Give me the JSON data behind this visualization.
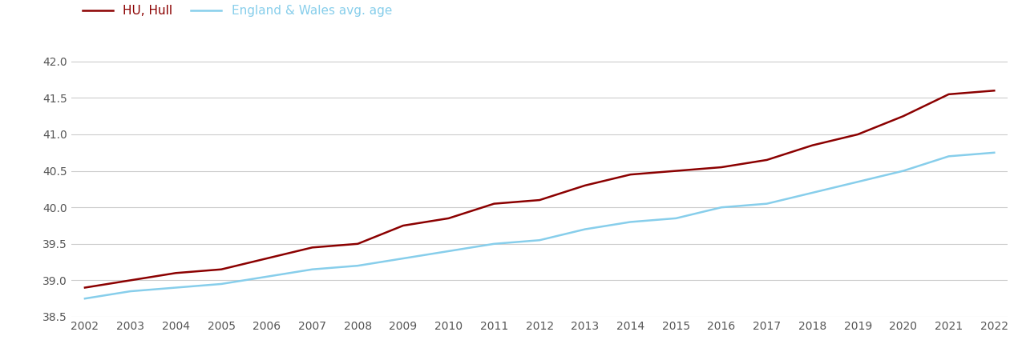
{
  "years": [
    2002,
    2003,
    2004,
    2005,
    2006,
    2007,
    2008,
    2009,
    2010,
    2011,
    2012,
    2013,
    2014,
    2015,
    2016,
    2017,
    2018,
    2019,
    2020,
    2021,
    2022
  ],
  "hull": [
    38.9,
    39.0,
    39.1,
    39.15,
    39.3,
    39.45,
    39.5,
    39.75,
    39.85,
    40.05,
    40.1,
    40.3,
    40.45,
    40.5,
    40.55,
    40.65,
    40.85,
    41.0,
    41.25,
    41.55,
    41.6
  ],
  "england_wales": [
    38.75,
    38.85,
    38.9,
    38.95,
    39.05,
    39.15,
    39.2,
    39.3,
    39.4,
    39.5,
    39.55,
    39.7,
    39.8,
    39.85,
    40.0,
    40.05,
    40.2,
    40.35,
    40.5,
    40.7,
    40.75
  ],
  "hull_color": "#8B0000",
  "ew_color": "#87CEEB",
  "hull_label": "HU, Hull",
  "ew_label": "England & Wales avg. age",
  "ylim": [
    38.5,
    42.25
  ],
  "yticks": [
    38.5,
    39.0,
    39.5,
    40.0,
    40.5,
    41.0,
    41.5,
    42.0
  ],
  "background_color": "#ffffff",
  "grid_color": "#cccccc",
  "line_width": 1.8,
  "legend_fontsize": 11,
  "tick_fontsize": 10,
  "tick_color": "#555555"
}
